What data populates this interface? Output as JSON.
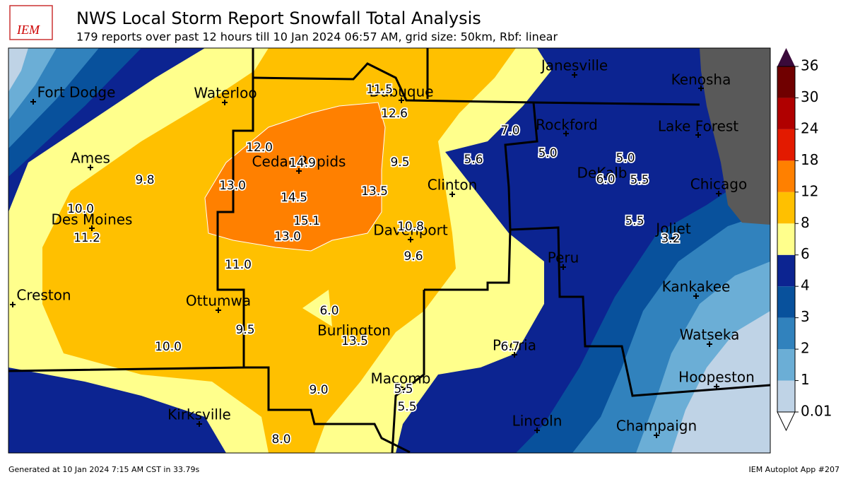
{
  "header": {
    "logo": "IEM",
    "title": "NWS Local Storm Report Snowfall Total Analysis",
    "subtitle": "179 reports over past 12 hours till 10 Jan 2024 06:57 AM, grid size: 50km, Rbf: linear"
  },
  "map": {
    "cities": [
      "Fort Dodge",
      "Waterloo",
      "Dubuque",
      "Janesville",
      "Kenosha",
      "Rockford",
      "Lake Forest",
      "Ames",
      "Cedar Rapids",
      "DeKalb",
      "Clinton",
      "Chicago",
      "Des Moines",
      "Davenport",
      "Joliet",
      "Peru",
      "Creston",
      "Ottumwa",
      "Kankakee",
      "Burlington",
      "Watseka",
      "Peoria",
      "Macomb",
      "Hoopeston",
      "Kirksville",
      "Lincoln",
      "Champaign"
    ],
    "snow_reports": [
      "11.5",
      "12.6",
      "7.0",
      "5.6",
      "5.0",
      "5.0",
      "6.0",
      "5.5",
      "12.0",
      "14.9",
      "9.5",
      "9.8",
      "13.0",
      "14.5",
      "13.5",
      "10.0",
      "15.1",
      "11.2",
      "13.0",
      "10.8",
      "5.5",
      "3.2",
      "9.6",
      "11.0",
      "6.0",
      "9.5",
      "13.5",
      "10.0",
      "6.7",
      "9.0",
      "5.5",
      "5.5",
      "8.0"
    ]
  },
  "legend": {
    "ticks": [
      0.01,
      1,
      2,
      3,
      4,
      6,
      8,
      12,
      18,
      24,
      30,
      36
    ],
    "colors": [
      "#bfd3e6",
      "#6baed6",
      "#3182bd",
      "#08519c",
      "#0c2491",
      "#ffff8c",
      "#ffc000",
      "#ff8000",
      "#e31a00",
      "#b00000",
      "#700000"
    ],
    "over_color": "#3a0a3a"
  },
  "footer": {
    "left": "Generated at 10 Jan 2024 7:15 AM CST in 33.79s",
    "right": "IEM Autoplot App #207"
  }
}
